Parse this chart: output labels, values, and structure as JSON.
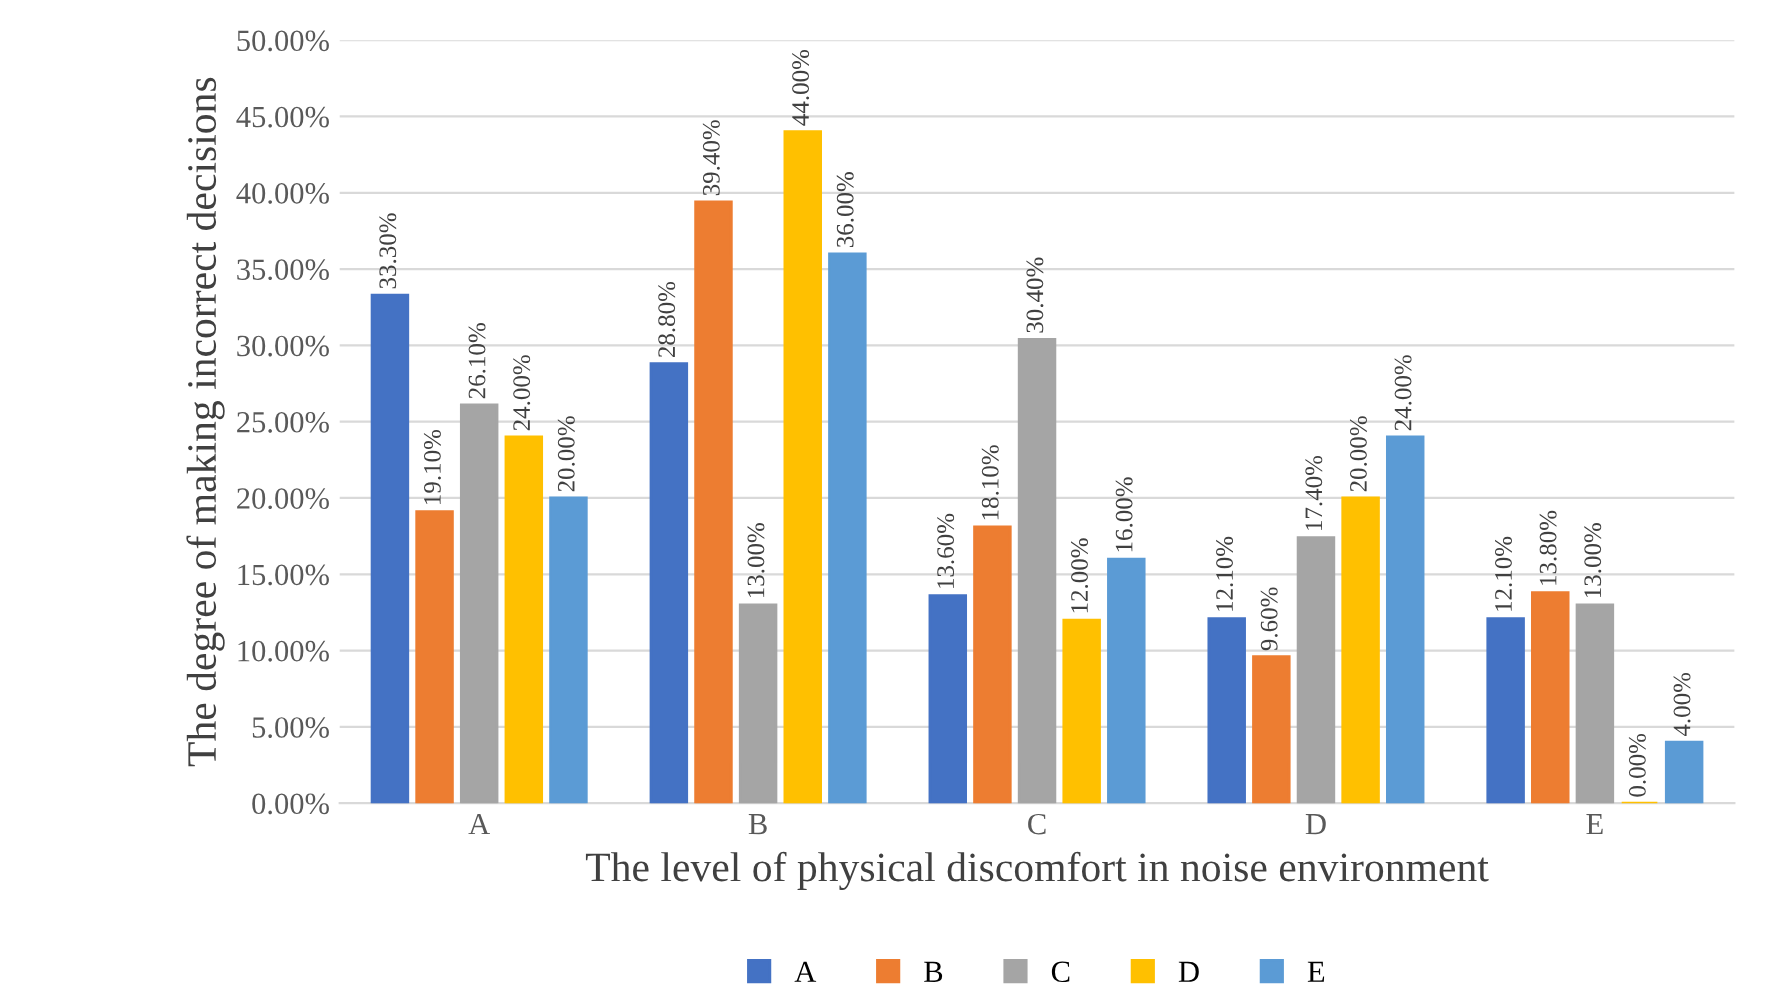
{
  "chart_data": {
    "type": "bar",
    "xlabel": "The level of physical discomfort in noise environment",
    "ylabel": "The degree of making incorrect decisions",
    "categories": [
      "A",
      "B",
      "C",
      "D",
      "E"
    ],
    "series": [
      {
        "name": "A",
        "color": "#4472c4",
        "values": [
          33.3,
          28.8,
          13.6,
          12.1,
          12.1
        ],
        "value_labels": [
          "33.30%",
          "28.80%",
          "13.60%",
          "12.10%",
          "12.10%"
        ]
      },
      {
        "name": "B",
        "color": "#ed7d31",
        "values": [
          19.1,
          39.4,
          18.1,
          9.6,
          13.8
        ],
        "value_labels": [
          "19.10%",
          "39.40%",
          "18.10%",
          "9.60%",
          "13.80%"
        ]
      },
      {
        "name": "C",
        "color": "#a5a5a5",
        "values": [
          26.1,
          13.0,
          30.4,
          17.4,
          13.0
        ],
        "value_labels": [
          "26.10%",
          "13.00%",
          "30.40%",
          "17.40%",
          "13.00%"
        ]
      },
      {
        "name": "D",
        "color": "#ffc000",
        "values": [
          24.0,
          44.0,
          12.0,
          20.0,
          0.0
        ],
        "value_labels": [
          "24.00%",
          "44.00%",
          "12.00%",
          "20.00%",
          "0.00%"
        ]
      },
      {
        "name": "E",
        "color": "#5b9bd5",
        "values": [
          20.0,
          36.0,
          16.0,
          24.0,
          4.0
        ],
        "value_labels": [
          "20.00%",
          "36.00%",
          "16.00%",
          "24.00%",
          "4.00%"
        ]
      }
    ],
    "ylim": [
      0,
      50
    ],
    "yticks": [
      {
        "value": 0,
        "label": "0.00%"
      },
      {
        "value": 5,
        "label": "5.00%"
      },
      {
        "value": 10,
        "label": "10.00%"
      },
      {
        "value": 15,
        "label": "15.00%"
      },
      {
        "value": 20,
        "label": "20.00%"
      },
      {
        "value": 25,
        "label": "25.00%"
      },
      {
        "value": 30,
        "label": "30.00%"
      },
      {
        "value": 35,
        "label": "35.00%"
      },
      {
        "value": 40,
        "label": "40.00%"
      },
      {
        "value": 45,
        "label": "45.00%"
      },
      {
        "value": 50,
        "label": "50.00%"
      }
    ],
    "grid": "y",
    "legend": "bottom"
  }
}
